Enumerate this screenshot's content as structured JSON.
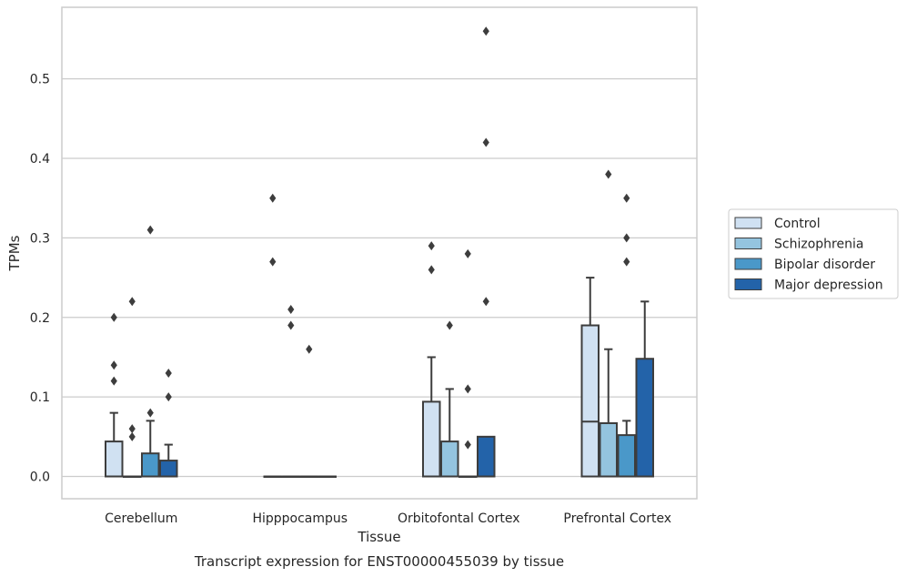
{
  "caption": "Transcript expression for ENST00000455039 by tissue",
  "chart_data": {
    "type": "boxplot",
    "xlabel": "Tissue",
    "ylabel": "TPMs",
    "ylim": [
      -0.028,
      0.59
    ],
    "yticks": [
      0.0,
      0.1,
      0.2,
      0.3,
      0.4,
      0.5
    ],
    "ytick_labels": [
      "0.0",
      "0.1",
      "0.2",
      "0.3",
      "0.4",
      "0.5"
    ],
    "grid": "horizontal",
    "legend_position": "right",
    "categories": [
      "Cerebellum",
      "Hipppocampus",
      "Orbitofontal Cortex",
      "Prefrontal Cortex"
    ],
    "colors": [
      "#d0e1f2",
      "#94c4df",
      "#4a98c9",
      "#2363a9"
    ],
    "series": [
      {
        "name": "Control",
        "boxes": [
          {
            "q1": 0.0,
            "median": 0.0,
            "q3": 0.044,
            "whisker_low": 0.0,
            "whisker_high": 0.08,
            "outliers": [
              0.12,
              0.14,
              0.2
            ]
          },
          {
            "q1": 0.0,
            "median": 0.0,
            "q3": 0.0,
            "whisker_low": 0.0,
            "whisker_high": 0.0,
            "outliers": [
              0.27,
              0.35
            ]
          },
          {
            "q1": 0.0,
            "median": 0.0,
            "q3": 0.094,
            "whisker_low": 0.0,
            "whisker_high": 0.15,
            "outliers": [
              0.26,
              0.29
            ]
          },
          {
            "q1": 0.0,
            "median": 0.069,
            "q3": 0.19,
            "whisker_low": 0.0,
            "whisker_high": 0.25,
            "outliers": []
          }
        ]
      },
      {
        "name": "Schizophrenia",
        "boxes": [
          {
            "q1": 0.0,
            "median": 0.0,
            "q3": 0.0,
            "whisker_low": 0.0,
            "whisker_high": 0.0,
            "outliers": [
              0.05,
              0.06,
              0.22
            ]
          },
          {
            "q1": 0.0,
            "median": 0.0,
            "q3": 0.0,
            "whisker_low": 0.0,
            "whisker_high": 0.0,
            "outliers": [
              0.19,
              0.21
            ]
          },
          {
            "q1": 0.0,
            "median": 0.0,
            "q3": 0.044,
            "whisker_low": 0.0,
            "whisker_high": 0.11,
            "outliers": [
              0.19
            ]
          },
          {
            "q1": 0.0,
            "median": 0.0,
            "q3": 0.067,
            "whisker_low": 0.0,
            "whisker_high": 0.16,
            "outliers": [
              0.38
            ]
          }
        ]
      },
      {
        "name": "Bipolar disorder",
        "boxes": [
          {
            "q1": 0.0,
            "median": 0.0,
            "q3": 0.029,
            "whisker_low": 0.0,
            "whisker_high": 0.07,
            "outliers": [
              0.08,
              0.31
            ]
          },
          {
            "q1": 0.0,
            "median": 0.0,
            "q3": 0.0,
            "whisker_low": 0.0,
            "whisker_high": 0.0,
            "outliers": [
              0.16
            ]
          },
          {
            "q1": 0.0,
            "median": 0.0,
            "q3": 0.0,
            "whisker_low": 0.0,
            "whisker_high": 0.0,
            "outliers": [
              0.04,
              0.11,
              0.28
            ]
          },
          {
            "q1": 0.0,
            "median": 0.0,
            "q3": 0.052,
            "whisker_low": 0.0,
            "whisker_high": 0.07,
            "outliers": [
              0.27,
              0.3,
              0.35
            ]
          }
        ]
      },
      {
        "name": "Major depression",
        "boxes": [
          {
            "q1": 0.0,
            "median": 0.0,
            "q3": 0.02,
            "whisker_low": 0.0,
            "whisker_high": 0.04,
            "outliers": [
              0.1,
              0.13
            ]
          },
          {
            "q1": 0.0,
            "median": 0.0,
            "q3": 0.0,
            "whisker_low": 0.0,
            "whisker_high": 0.0,
            "outliers": []
          },
          {
            "q1": 0.0,
            "median": 0.0,
            "q3": 0.05,
            "whisker_low": 0.0,
            "whisker_high": 0.05,
            "outliers": [
              0.22,
              0.42,
              0.56
            ]
          },
          {
            "q1": 0.0,
            "median": 0.0,
            "q3": 0.148,
            "whisker_low": 0.0,
            "whisker_high": 0.22,
            "outliers": []
          }
        ]
      }
    ]
  }
}
